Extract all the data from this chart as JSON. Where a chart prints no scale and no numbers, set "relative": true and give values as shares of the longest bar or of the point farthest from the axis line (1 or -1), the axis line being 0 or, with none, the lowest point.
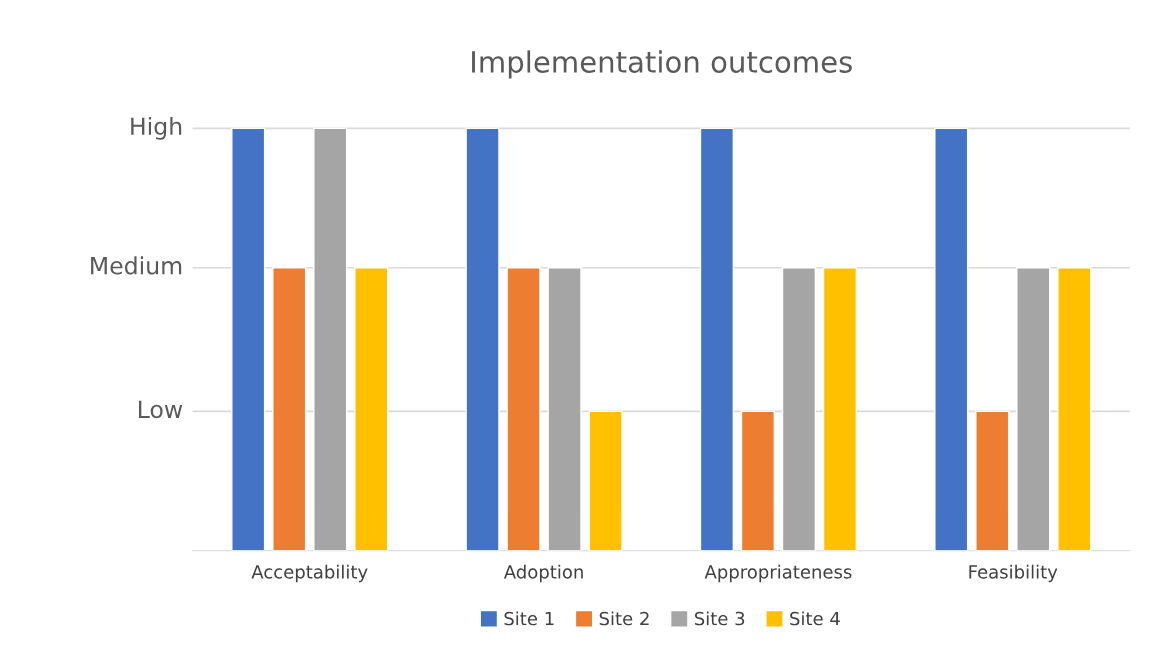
{
  "chart_data": {
    "type": "bar",
    "title": "Implementation outcomes",
    "relative": true,
    "categories": [
      "Acceptability",
      "Adoption",
      "Appropriateness",
      "Feasibility"
    ],
    "series": [
      {
        "name": "Site 1",
        "color": "#4472c4",
        "values": [
          1,
          1,
          1,
          1
        ]
      },
      {
        "name": "Site 2",
        "color": "#ed7d31",
        "values": [
          0.67,
          0.67,
          0.33,
          0.33
        ]
      },
      {
        "name": "Site 3",
        "color": "#a5a5a5",
        "values": [
          1,
          0.67,
          0.67,
          0.67
        ]
      },
      {
        "name": "Site 4",
        "color": "#ffc000",
        "values": [
          0.67,
          0.33,
          0.67,
          0.67
        ]
      }
    ],
    "ref_lines": [
      {
        "axis": "y",
        "value": 0.33,
        "label": "Low",
        "color": "#d9d9d9"
      },
      {
        "axis": "y",
        "value": 0.67,
        "label": "Medium",
        "color": "#d9d9d9"
      },
      {
        "axis": "y",
        "value": 1,
        "label": "High",
        "color": "#d9d9d9"
      }
    ],
    "legend": "bottom"
  }
}
